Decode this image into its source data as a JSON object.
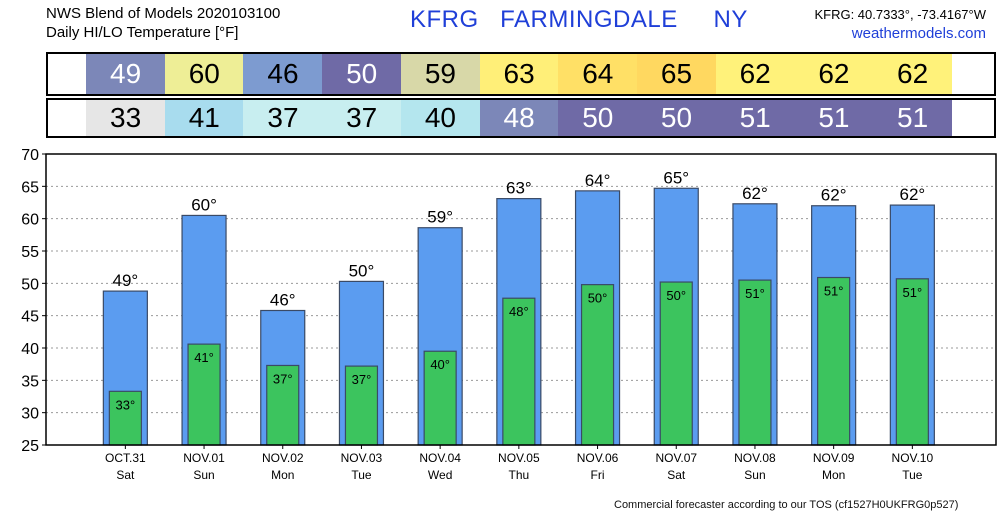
{
  "header": {
    "title_line1": "NWS Blend of Models 2020103100",
    "title_line2": "Daily HI/LO Temperature [°F]",
    "station": "KFRG   FARMINGDALE     NY",
    "coords": "KFRG: 40.7333°, -73.4167°W",
    "site": "weathermodels.com"
  },
  "footer": "Commercial forecaster according to our TOS (cf1527H0UKFRG0p527)",
  "hi_strip": [
    {
      "value": "49",
      "bg": "#7c87b8",
      "fg": "#ffffff"
    },
    {
      "value": "60",
      "bg": "#eeee96",
      "fg": "#000000"
    },
    {
      "value": "46",
      "bg": "#7d9bd0",
      "fg": "#000000"
    },
    {
      "value": "50",
      "bg": "#6f6aa6",
      "fg": "#ffffff"
    },
    {
      "value": "59",
      "bg": "#d8d8a8",
      "fg": "#000000"
    },
    {
      "value": "63",
      "bg": "#ffef78",
      "fg": "#000000"
    },
    {
      "value": "64",
      "bg": "#ffe066",
      "fg": "#000000"
    },
    {
      "value": "65",
      "bg": "#ffd860",
      "fg": "#000000"
    },
    {
      "value": "62",
      "bg": "#fff27a",
      "fg": "#000000"
    },
    {
      "value": "62",
      "bg": "#fff27a",
      "fg": "#000000"
    },
    {
      "value": "62",
      "bg": "#fff27a",
      "fg": "#000000"
    }
  ],
  "lo_strip": [
    {
      "value": "33",
      "bg": "#e6e6e6",
      "fg": "#000000"
    },
    {
      "value": "41",
      "bg": "#a8dcee",
      "fg": "#000000"
    },
    {
      "value": "37",
      "bg": "#c8eef0",
      "fg": "#000000"
    },
    {
      "value": "37",
      "bg": "#c8eef0",
      "fg": "#000000"
    },
    {
      "value": "40",
      "bg": "#b4e6ee",
      "fg": "#000000"
    },
    {
      "value": "48",
      "bg": "#7c87b8",
      "fg": "#ffffff"
    },
    {
      "value": "50",
      "bg": "#6f6aa6",
      "fg": "#ffffff"
    },
    {
      "value": "50",
      "bg": "#6f6aa6",
      "fg": "#ffffff"
    },
    {
      "value": "51",
      "bg": "#6f6aa6",
      "fg": "#ffffff"
    },
    {
      "value": "51",
      "bg": "#6f6aa6",
      "fg": "#ffffff"
    },
    {
      "value": "51",
      "bg": "#6f6aa6",
      "fg": "#ffffff"
    }
  ],
  "chart_data": {
    "type": "bar",
    "title": "Daily HI/LO Temperature [°F]",
    "ylim": [
      25,
      70
    ],
    "yticks": [
      25,
      30,
      35,
      40,
      45,
      50,
      55,
      60,
      65,
      70
    ],
    "grid": true,
    "categories": [
      "OCT.31",
      "NOV.01",
      "NOV.02",
      "NOV.03",
      "NOV.04",
      "NOV.05",
      "NOV.06",
      "NOV.07",
      "NOV.08",
      "NOV.09",
      "NOV.10"
    ],
    "weekdays": [
      "Sat",
      "Sun",
      "Mon",
      "Tue",
      "Wed",
      "Thu",
      "Fri",
      "Sat",
      "Sun",
      "Mon",
      "Tue"
    ],
    "series": [
      {
        "color": "#5b9cf0",
        "values": [
          48.8,
          60.5,
          45.8,
          50.3,
          58.6,
          63.1,
          64.3,
          64.7,
          62.3,
          62.0,
          62.1
        ],
        "labels": [
          "49°",
          "60°",
          "46°",
          "50°",
          "59°",
          "63°",
          "64°",
          "65°",
          "62°",
          "62°",
          "62°"
        ]
      },
      {
        "color": "#3cc45e",
        "values": [
          33.3,
          40.6,
          37.3,
          37.2,
          39.5,
          47.7,
          49.8,
          50.2,
          50.5,
          50.9,
          50.7
        ],
        "labels": [
          "33°",
          "41°",
          "37°",
          "37°",
          "40°",
          "48°",
          "50°",
          "50°",
          "51°",
          "51°",
          "51°"
        ]
      }
    ]
  }
}
